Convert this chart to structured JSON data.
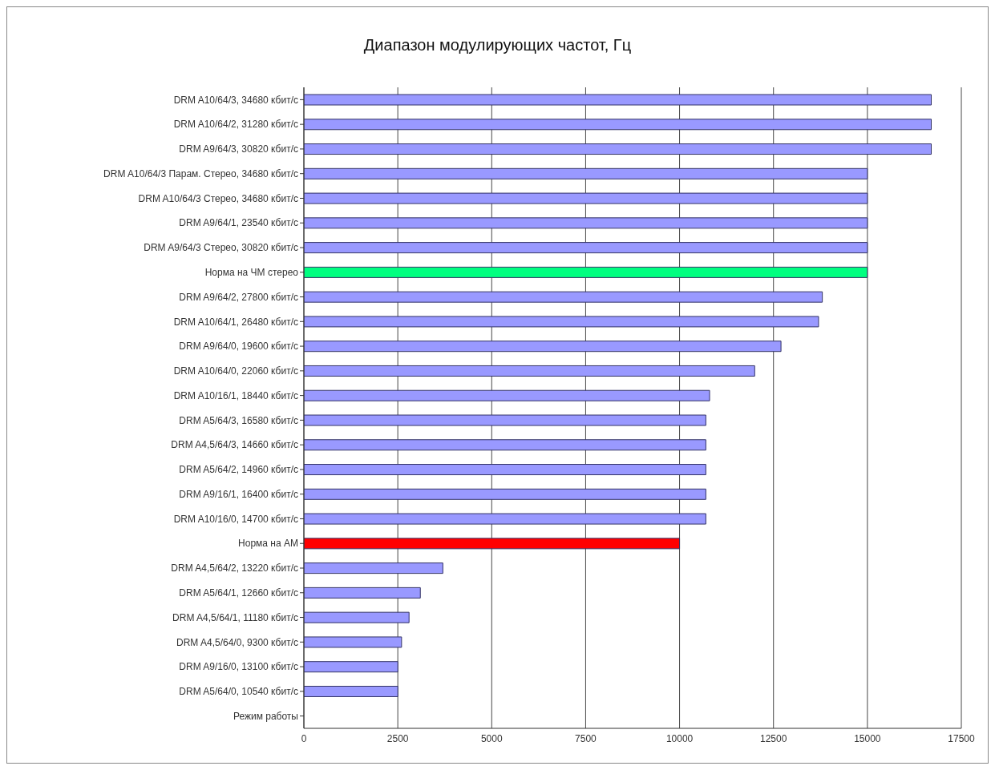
{
  "chart_data": {
    "type": "bar",
    "orientation": "horizontal",
    "title": "Диапазон модулирующих частот, Гц",
    "categories": [
      "DRM A10/64/3, 34680 кбит/с",
      "DRM A10/64/2, 31280 кбит/с",
      "DRM A9/64/3, 30820 кбит/с",
      "DRM A10/64/3 Парам. Стерео, 34680 кбит/с",
      "DRM A10/64/3 Стерео, 34680 кбит/с",
      "DRM A9/64/1, 23540 кбит/с",
      "DRM A9/64/3 Стерео, 30820 кбит/с",
      "Норма на ЧМ стерео",
      "DRM A9/64/2, 27800 кбит/с",
      "DRM A10/64/1, 26480 кбит/с",
      "DRM A9/64/0, 19600 кбит/с",
      "DRM A10/64/0, 22060 кбит/с",
      "DRM A10/16/1, 18440 кбит/с",
      "DRM A5/64/3, 16580 кбит/с",
      "DRM A4,5/64/3, 14660 кбит/с",
      "DRM A5/64/2, 14960 кбит/с",
      "DRM A9/16/1, 16400 кбит/с",
      "DRM A10/16/0, 14700 кбит/с",
      "Норма на АМ",
      "DRM A4,5/64/2, 13220 кбит/с",
      "DRM A5/64/1, 12660 кбит/с",
      "DRM A4,5/64/1, 11180 кбит/с",
      "DRM A4,5/64/0, 9300 кбит/с",
      "DRM A9/16/0, 13100 кбит/с",
      "DRM A5/64/0, 10540 кбит/с",
      "Режим работы"
    ],
    "values": [
      16700,
      16700,
      16700,
      15000,
      15000,
      15000,
      15000,
      15000,
      13800,
      13700,
      12700,
      12000,
      10800,
      10700,
      10700,
      10700,
      10700,
      10700,
      10000,
      3700,
      3100,
      2800,
      2600,
      2500,
      2500,
      null
    ],
    "colors": [
      "#9999ff",
      "#9999ff",
      "#9999ff",
      "#9999ff",
      "#9999ff",
      "#9999ff",
      "#9999ff",
      "#00ff80",
      "#9999ff",
      "#9999ff",
      "#9999ff",
      "#9999ff",
      "#9999ff",
      "#9999ff",
      "#9999ff",
      "#9999ff",
      "#9999ff",
      "#9999ff",
      "#ff0000",
      "#9999ff",
      "#9999ff",
      "#9999ff",
      "#9999ff",
      "#9999ff",
      "#9999ff",
      "#9999ff"
    ],
    "xlim": [
      0,
      17500
    ],
    "xticks": [
      0,
      2500,
      5000,
      7500,
      10000,
      12500,
      15000,
      17500
    ],
    "grid": "x"
  }
}
